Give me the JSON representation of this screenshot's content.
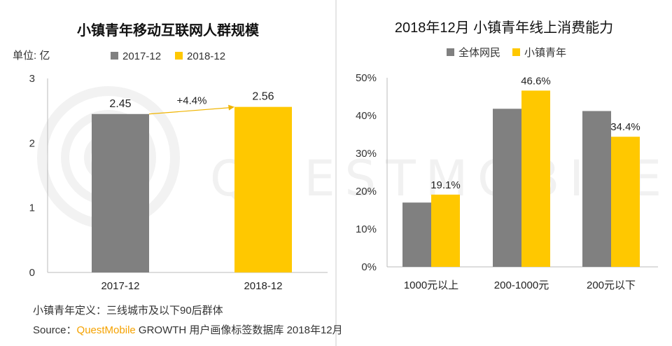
{
  "colors": {
    "gray": "#808080",
    "yellow": "#ffc800",
    "axis": "#bbbbbb",
    "arrow": "#f0b400",
    "accent": "#f5a200"
  },
  "left_chart": {
    "title": "小镇青年移动互联网人群规模",
    "unit_label": "单位: 亿",
    "legend": [
      "2017-12",
      "2018-12"
    ]
  },
  "right_chart": {
    "title": "2018年12月 小镇青年线上消费能力",
    "legend": [
      "全体网民",
      "小镇青年"
    ]
  },
  "notes": {
    "definition": "小镇青年定义：三线城市及以下90后群体",
    "source_prefix": "Source：",
    "source_brand": "QuestMobile",
    "source_rest": " GROWTH 用户画像标签数据库 2018年12月"
  },
  "watermark": "QUESTMOBILE",
  "chart_data": [
    {
      "type": "bar",
      "title": "小镇青年移动互联网人群规模",
      "ylabel": "单位: 亿",
      "categories": [
        "2017-12",
        "2018-12"
      ],
      "values": [
        2.45,
        2.56
      ],
      "data_labels": [
        "2.45",
        "2.56"
      ],
      "yticks": [
        "0",
        "1",
        "2",
        "3"
      ],
      "ylim": [
        0,
        3
      ],
      "grid": false,
      "legend": [
        "2017-12",
        "2018-12"
      ],
      "legend_position": "top",
      "annotation": "+4.4%"
    },
    {
      "type": "bar",
      "title": "2018年12月 小镇青年线上消费能力",
      "categories": [
        "1000元以上",
        "200-1000元",
        "200元以下"
      ],
      "series": [
        {
          "name": "全体网民",
          "values": [
            17.0,
            41.8,
            41.2
          ]
        },
        {
          "name": "小镇青年",
          "values": [
            19.1,
            46.6,
            34.4
          ],
          "data_labels": [
            "19.1%",
            "46.6%",
            "34.4%"
          ]
        }
      ],
      "yticks": [
        "0%",
        "10%",
        "20%",
        "30%",
        "40%",
        "50%"
      ],
      "ylim": [
        0,
        50
      ],
      "grid": false,
      "legend_position": "top"
    }
  ]
}
